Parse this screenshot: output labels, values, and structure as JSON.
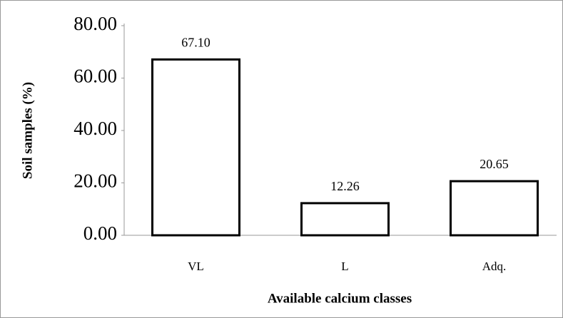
{
  "chart_data": {
    "type": "bar",
    "categories": [
      "VL",
      "L",
      "Adq."
    ],
    "values": [
      67.1,
      12.26,
      20.65
    ],
    "value_labels": [
      "67.10",
      "12.26",
      "20.65"
    ],
    "color": "#ffffff",
    "xlabel": "Available calcium classes",
    "ylabel": "Soil samples (%)",
    "ylim": [
      0,
      80
    ],
    "yticks": [
      {
        "value": 0,
        "label": "0.00"
      },
      {
        "value": 20,
        "label": "20.00"
      },
      {
        "value": 40,
        "label": "40.00"
      },
      {
        "value": 60,
        "label": "60.00"
      },
      {
        "value": 80,
        "label": "80.00"
      }
    ],
    "grid": false
  }
}
